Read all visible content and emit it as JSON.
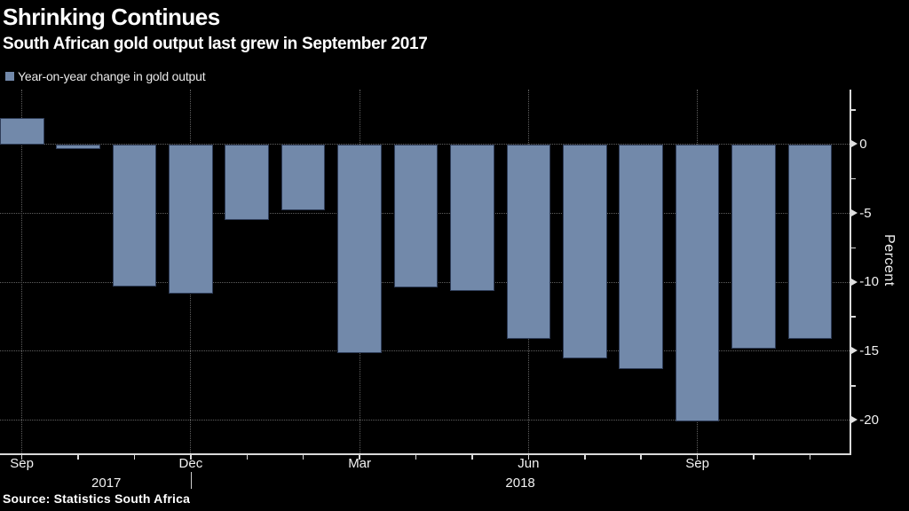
{
  "title": "Shrinking Continues",
  "subtitle": "South African gold output last grew in September 2017",
  "legend": {
    "label": "Year-on-year change in gold output",
    "swatch_color": "#7289aa"
  },
  "source": "Source: Statistics South Africa",
  "chart_data": {
    "type": "bar",
    "title": "Shrinking Continues",
    "subtitle": "South African gold output last grew in September 2017",
    "series_name": "Year-on-year change in gold output",
    "categories": [
      "Sep 2017",
      "Oct 2017",
      "Nov 2017",
      "Dec 2017",
      "Jan 2018",
      "Feb 2018",
      "Mar 2018",
      "Apr 2018",
      "May 2018",
      "Jun 2018",
      "Jul 2018",
      "Aug 2018",
      "Sep 2018",
      "Oct 2018",
      "Nov 2018"
    ],
    "values": [
      1.9,
      -0.3,
      -10.3,
      -10.8,
      -5.5,
      -4.8,
      -15.1,
      -10.4,
      -10.6,
      -14.1,
      -15.5,
      -16.3,
      -20.1,
      -14.8,
      -14.1
    ],
    "unit": "percent",
    "xlabel": "",
    "ylabel": "Percent",
    "ylim": [
      4.0,
      -22.4
    ],
    "y_ticks": [
      0,
      -5,
      -10,
      -15,
      -20
    ],
    "y_minor_ticks": [
      2.5,
      -2.5,
      -7.5,
      -12.5,
      -17.5
    ],
    "x_tick_labels": [
      {
        "index": 0,
        "label": "Sep"
      },
      {
        "index": 3,
        "label": "Dec"
      },
      {
        "index": 6,
        "label": "Mar"
      },
      {
        "index": 9,
        "label": "Jun"
      },
      {
        "index": 12,
        "label": "Sep"
      }
    ],
    "year_labels": [
      "2017",
      "2018"
    ],
    "bar_color": "#7289aa",
    "grid": true,
    "legend_position": "top-left",
    "axis_side": "right"
  }
}
